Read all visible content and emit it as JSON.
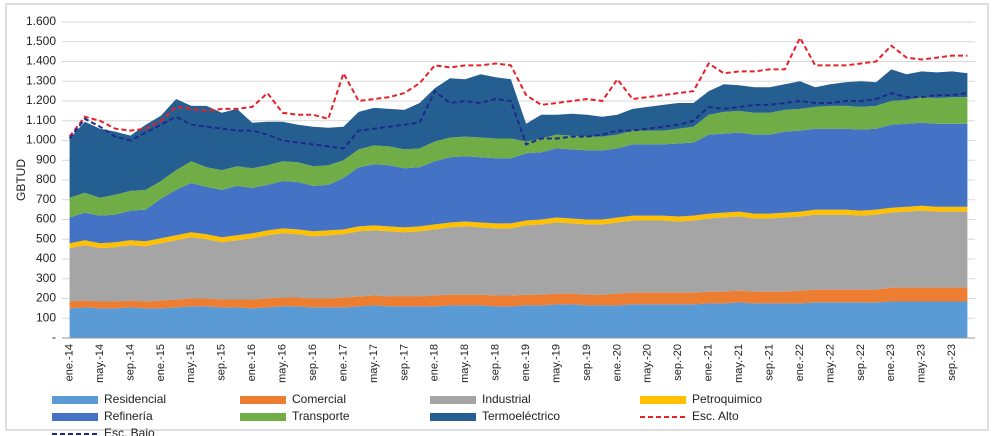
{
  "chart_data": {
    "type": "stacked-area",
    "ylabel": "GBTUD",
    "categories": [
      "ene.-14",
      null,
      "may.-14",
      null,
      "sep.-14",
      null,
      "ene.-15",
      null,
      "may.-15",
      null,
      "sep.-15",
      null,
      "ene.-16",
      null,
      "may.-16",
      null,
      "sep.-16",
      null,
      "ene.-17",
      null,
      "may.-17",
      null,
      "sep.-17",
      null,
      "ene.-18",
      null,
      "may.-18",
      null,
      "sep.-18",
      null,
      "ene.-19",
      null,
      "may.-19",
      null,
      "sep.-19",
      null,
      "ene.-20",
      null,
      "may.-20",
      null,
      "sep.-20",
      null,
      "ene.-21",
      null,
      "may.-21",
      null,
      "sep.-21",
      null,
      "ene.-22",
      null,
      "may.-22",
      null,
      "sep.-22",
      null,
      "ene.-23",
      null,
      "may.-23",
      null,
      "sep.-23",
      null
    ],
    "ylim": [
      0,
      1600
    ],
    "yticks": [
      {
        "value": 0,
        "label": "-"
      },
      100,
      200,
      300,
      400,
      500,
      600,
      700,
      800,
      900,
      {
        "value": 1000,
        "label": "1.000"
      },
      {
        "value": 1100,
        "label": "1.100"
      },
      {
        "value": 1200,
        "label": "1.200"
      },
      {
        "value": 1300,
        "label": "1.300"
      },
      {
        "value": 1400,
        "label": "1.400"
      },
      {
        "value": 1500,
        "label": "1.500"
      },
      {
        "value": 1600,
        "label": "1.600"
      }
    ],
    "grid": true,
    "legend": "bottom",
    "series": [
      {
        "name": "Residencial",
        "color": "#5b9bd5",
        "kind": "area",
        "values": [
          150,
          155,
          150,
          150,
          155,
          150,
          150,
          155,
          160,
          160,
          155,
          155,
          150,
          155,
          160,
          160,
          155,
          155,
          155,
          160,
          165,
          160,
          160,
          160,
          160,
          165,
          165,
          165,
          160,
          160,
          165,
          165,
          170,
          170,
          165,
          165,
          165,
          170,
          170,
          170,
          170,
          170,
          175,
          175,
          180,
          175,
          175,
          175,
          175,
          180,
          180,
          180,
          180,
          180,
          185,
          185,
          185,
          185,
          185,
          185
        ]
      },
      {
        "name": "Comercial",
        "color": "#ed7d31",
        "kind": "area",
        "values": [
          35,
          35,
          35,
          35,
          35,
          35,
          40,
          40,
          40,
          40,
          40,
          40,
          45,
          45,
          45,
          45,
          45,
          45,
          50,
          50,
          50,
          50,
          50,
          50,
          55,
          55,
          55,
          55,
          55,
          55,
          55,
          55,
          55,
          55,
          55,
          55,
          60,
          60,
          60,
          60,
          60,
          60,
          60,
          60,
          60,
          60,
          60,
          60,
          65,
          65,
          65,
          65,
          65,
          65,
          70,
          70,
          70,
          70,
          70,
          70
        ]
      },
      {
        "name": "Industrial",
        "color": "#a5a5a5",
        "kind": "area",
        "values": [
          270,
          280,
          270,
          275,
          280,
          280,
          290,
          300,
          310,
          300,
          290,
          300,
          310,
          320,
          325,
          320,
          315,
          320,
          320,
          330,
          330,
          330,
          325,
          330,
          335,
          340,
          345,
          340,
          340,
          340,
          350,
          355,
          360,
          355,
          355,
          355,
          360,
          365,
          365,
          365,
          360,
          365,
          370,
          375,
          375,
          370,
          370,
          375,
          375,
          380,
          380,
          380,
          375,
          380,
          380,
          385,
          390,
          385,
          385,
          385
        ]
      },
      {
        "name": "Petroquimico",
        "color": "#ffc000",
        "kind": "area",
        "values": [
          25,
          25,
          25,
          25,
          25,
          25,
          25,
          25,
          25,
          25,
          25,
          25,
          25,
          25,
          25,
          25,
          25,
          25,
          25,
          25,
          25,
          25,
          25,
          25,
          25,
          25,
          25,
          25,
          25,
          25,
          25,
          25,
          25,
          25,
          25,
          25,
          25,
          25,
          25,
          25,
          25,
          25,
          25,
          25,
          25,
          25,
          25,
          25,
          25,
          25,
          25,
          25,
          25,
          25,
          25,
          25,
          25,
          25,
          25,
          25
        ]
      },
      {
        "name": "Refinería",
        "color": "#4472c4",
        "kind": "area",
        "values": [
          130,
          140,
          140,
          140,
          150,
          160,
          200,
          230,
          250,
          240,
          240,
          250,
          230,
          230,
          240,
          240,
          230,
          230,
          260,
          300,
          310,
          310,
          300,
          300,
          320,
          330,
          330,
          330,
          330,
          330,
          340,
          340,
          350,
          350,
          350,
          350,
          350,
          360,
          360,
          360,
          370,
          370,
          400,
          400,
          400,
          400,
          400,
          410,
          410,
          410,
          410,
          410,
          410,
          410,
          420,
          420,
          420,
          420,
          420,
          420
        ]
      },
      {
        "name": "Transporte",
        "color": "#70ad47",
        "kind": "area",
        "values": [
          100,
          100,
          90,
          100,
          100,
          100,
          90,
          100,
          110,
          100,
          100,
          100,
          100,
          100,
          100,
          100,
          100,
          100,
          90,
          90,
          95,
          95,
          95,
          95,
          100,
          100,
          100,
          100,
          100,
          100,
          60,
          70,
          70,
          70,
          70,
          70,
          70,
          70,
          70,
          70,
          75,
          80,
          100,
          110,
          110,
          110,
          110,
          110,
          110,
          110,
          115,
          115,
          115,
          115,
          120,
          120,
          130,
          130,
          135,
          135
        ]
      },
      {
        "name": "Termoeléctrico",
        "color": "#255e91",
        "kind": "area",
        "values": [
          300,
          360,
          350,
          320,
          280,
          330,
          330,
          360,
          280,
          310,
          290,
          290,
          230,
          220,
          200,
          190,
          200,
          190,
          170,
          190,
          190,
          190,
          200,
          230,
          270,
          300,
          290,
          320,
          310,
          300,
          90,
          120,
          100,
          110,
          110,
          100,
          100,
          110,
          120,
          130,
          130,
          120,
          120,
          140,
          130,
          130,
          130,
          130,
          140,
          100,
          110,
          120,
          130,
          120,
          160,
          130,
          130,
          130,
          130,
          120
        ]
      },
      {
        "name": "Esc. Alto",
        "color": "#e8202a",
        "kind": "line",
        "dash": true,
        "values": [
          1020,
          1120,
          1100,
          1060,
          1050,
          1060,
          1100,
          1170,
          1160,
          1150,
          1160,
          1160,
          1170,
          1240,
          1140,
          1130,
          1130,
          1110,
          1340,
          1200,
          1210,
          1220,
          1240,
          1290,
          1380,
          1370,
          1380,
          1380,
          1390,
          1380,
          1230,
          1180,
          1190,
          1200,
          1210,
          1200,
          1310,
          1210,
          1220,
          1230,
          1240,
          1250,
          1390,
          1340,
          1350,
          1350,
          1360,
          1360,
          1520,
          1380,
          1380,
          1380,
          1390,
          1400,
          1480,
          1420,
          1410,
          1420,
          1430,
          1430
        ]
      },
      {
        "name": "Esc. Bajo",
        "color": "#1f2a8a",
        "kind": "line",
        "dash": true,
        "values": [
          1010,
          1110,
          1070,
          1020,
          1000,
          1040,
          1080,
          1120,
          1080,
          1070,
          1060,
          1050,
          1050,
          1030,
          1000,
          990,
          980,
          970,
          960,
          1050,
          1060,
          1070,
          1080,
          1090,
          1250,
          1190,
          1200,
          1190,
          1210,
          1200,
          980,
          1010,
          1010,
          1020,
          1020,
          1030,
          1050,
          1050,
          1060,
          1070,
          1080,
          1100,
          1170,
          1160,
          1170,
          1180,
          1180,
          1190,
          1200,
          1190,
          1190,
          1200,
          1200,
          1210,
          1240,
          1220,
          1220,
          1230,
          1230,
          1240
        ]
      }
    ]
  }
}
